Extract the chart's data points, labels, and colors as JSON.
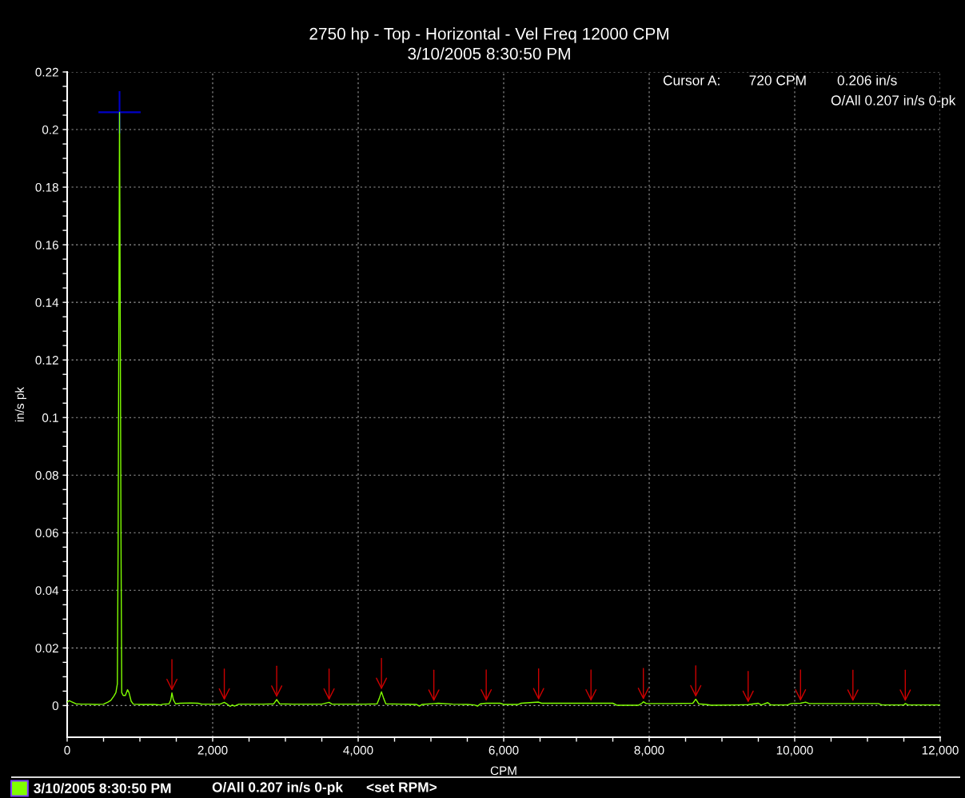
{
  "chart_data": {
    "type": "line",
    "title": "2750 hp - Top - Horizontal - Vel Freq 12000 CPM",
    "subtitle": "3/10/2005 8:30:50 PM",
    "xlabel": "CPM",
    "ylabel": "in/s pk",
    "xlim": [
      0,
      12000
    ],
    "xticks": [
      0,
      {
        "value": 500,
        "label": null
      },
      {
        "value": 1000,
        "label": null
      },
      {
        "value": 1500,
        "label": null
      },
      {
        "value": 2000,
        "label": "2,000"
      },
      {
        "value": 2500,
        "label": null
      },
      {
        "value": 3000,
        "label": null
      },
      {
        "value": 3500,
        "label": null
      },
      {
        "value": 4000,
        "label": "4,000"
      },
      {
        "value": 4500,
        "label": null
      },
      {
        "value": 5000,
        "label": null
      },
      {
        "value": 5500,
        "label": null
      },
      {
        "value": 6000,
        "label": "6,000"
      },
      {
        "value": 6500,
        "label": null
      },
      {
        "value": 7000,
        "label": null
      },
      {
        "value": 7500,
        "label": null
      },
      {
        "value": 8000,
        "label": "8,000"
      },
      {
        "value": 8500,
        "label": null
      },
      {
        "value": 9000,
        "label": null
      },
      {
        "value": 9500,
        "label": null
      },
      {
        "value": 10000,
        "label": "10,000"
      },
      {
        "value": 10500,
        "label": null
      },
      {
        "value": 11000,
        "label": null
      },
      {
        "value": 11500,
        "label": null
      },
      {
        "value": 12000,
        "label": "12,000"
      }
    ],
    "ylim": [
      -0.011,
      0.22
    ],
    "yticks": [
      0,
      {
        "value": 0.005,
        "label": null
      },
      {
        "value": 0.01,
        "label": null
      },
      {
        "value": 0.015,
        "label": null
      },
      0.02,
      {
        "value": 0.025,
        "label": null
      },
      {
        "value": 0.03,
        "label": null
      },
      {
        "value": 0.035,
        "label": null
      },
      0.04,
      {
        "value": 0.045,
        "label": null
      },
      {
        "value": 0.05,
        "label": null
      },
      {
        "value": 0.055,
        "label": null
      },
      0.06,
      {
        "value": 0.065,
        "label": null
      },
      {
        "value": 0.07,
        "label": null
      },
      {
        "value": 0.075,
        "label": null
      },
      0.08,
      {
        "value": 0.085,
        "label": null
      },
      {
        "value": 0.09,
        "label": null
      },
      {
        "value": 0.095,
        "label": null
      },
      0.1,
      {
        "value": 0.105,
        "label": null
      },
      {
        "value": 0.11,
        "label": null
      },
      {
        "value": 0.115,
        "label": null
      },
      0.12,
      {
        "value": 0.125,
        "label": null
      },
      {
        "value": 0.13,
        "label": null
      },
      {
        "value": 0.135,
        "label": null
      },
      0.14,
      {
        "value": 0.145,
        "label": null
      },
      {
        "value": 0.15,
        "label": null
      },
      {
        "value": 0.155,
        "label": null
      },
      0.16,
      {
        "value": 0.165,
        "label": null
      },
      {
        "value": 0.17,
        "label": null
      },
      {
        "value": 0.175,
        "label": null
      },
      0.18,
      {
        "value": 0.185,
        "label": null
      },
      {
        "value": 0.19,
        "label": null
      },
      {
        "value": 0.195,
        "label": null
      },
      0.2,
      {
        "value": 0.205,
        "label": null
      },
      {
        "value": 0.21,
        "label": null
      },
      {
        "value": 0.215,
        "label": null
      },
      0.22
    ],
    "grid": true,
    "legend": "bottom",
    "series": [
      {
        "name": "3/10/2005 8:30:50 PM",
        "color": "#80ff00",
        "x": [
          0,
          30,
          60,
          120,
          200,
          300,
          400,
          500,
          560,
          600,
          640,
          670,
          690,
          700,
          710,
          720,
          730,
          740,
          750,
          770,
          800,
          830,
          850,
          880,
          910,
          1000,
          1100,
          1200,
          1280,
          1320,
          1400,
          1425,
          1440,
          1460,
          1490,
          1550,
          1700,
          1800,
          1850,
          2000,
          2100,
          2160,
          2200,
          2240,
          2270,
          2300,
          2360,
          2500,
          2700,
          2840,
          2880,
          2920,
          3100,
          3300,
          3500,
          3600,
          3640,
          3900,
          4100,
          4260,
          4290,
          4320,
          4350,
          4380,
          4600,
          4800,
          4840,
          4880,
          5040,
          5100,
          5300,
          5500,
          5600,
          5640,
          5680,
          5760,
          5950,
          6000,
          6200,
          6240,
          6480,
          6520,
          6900,
          7200,
          7500,
          7560,
          7850,
          7900,
          7920,
          7960,
          8300,
          8600,
          8640,
          8680,
          8800,
          8850,
          9200,
          9360,
          9500,
          9540,
          9630,
          9670,
          9900,
          9950,
          10080,
          10150,
          10200,
          10800,
          11150,
          11200,
          11500,
          11520,
          11560,
          12000
        ],
        "values": [
          0.0012,
          0.0017,
          0.0013,
          0.0006,
          0.0005,
          0.0005,
          0.0004,
          0.0005,
          0.0012,
          0.0018,
          0.0032,
          0.0045,
          0.0075,
          0.054,
          0.129,
          0.206,
          0.133,
          0.058,
          0.0045,
          0.0035,
          0.0035,
          0.0055,
          0.0045,
          0.0015,
          0.0005,
          0.0004,
          0.0004,
          0.0004,
          0.0002,
          0.0005,
          0.0006,
          0.002,
          0.0044,
          0.002,
          0.0006,
          0.0008,
          0.0009,
          0.0008,
          0.0005,
          0.0005,
          0.0005,
          0.0011,
          0.0005,
          -0.0003,
          0.0002,
          -0.0002,
          0.0005,
          0.0005,
          0.0005,
          0.0006,
          0.0021,
          0.0006,
          0.0005,
          0.0005,
          0.0005,
          0.0011,
          0.0005,
          0.0005,
          0.0005,
          0.0006,
          0.0025,
          0.0048,
          0.0025,
          0.0006,
          0.0005,
          0.0004,
          -0.0002,
          0.0004,
          0.0007,
          0.0008,
          0.0005,
          0.0004,
          0.0002,
          -0.0002,
          0.0006,
          0.0008,
          0.0008,
          0.0004,
          0.0004,
          0.0008,
          0.0012,
          0.0008,
          0.0008,
          0.0008,
          0.0008,
          0.0001,
          0.0001,
          0.0008,
          0.0013,
          0.0007,
          0.0007,
          0.0008,
          0.0022,
          0.0006,
          0.0003,
          0.0001,
          0.0002,
          0.0003,
          0.0008,
          0.0002,
          0.001,
          0.0002,
          0.0002,
          0.0007,
          0.0008,
          0.0012,
          0.0007,
          0.0007,
          0.0007,
          0.0002,
          0.0002,
          0.0007,
          0.0002,
          0.0002
        ]
      },
      {
        "type": "scatter",
        "color": "#0000c8",
        "x": [
          720
        ],
        "values": [
          0.206
        ],
        "marker": "cross"
      }
    ],
    "annotations": [
      "Cursor A:",
      "720 CPM",
      "0.206 in/s",
      "O/All 0.207 in/s 0-pk",
      "O/All 0.207 in/s 0-pk",
      "<set RPM>"
    ]
  }
}
